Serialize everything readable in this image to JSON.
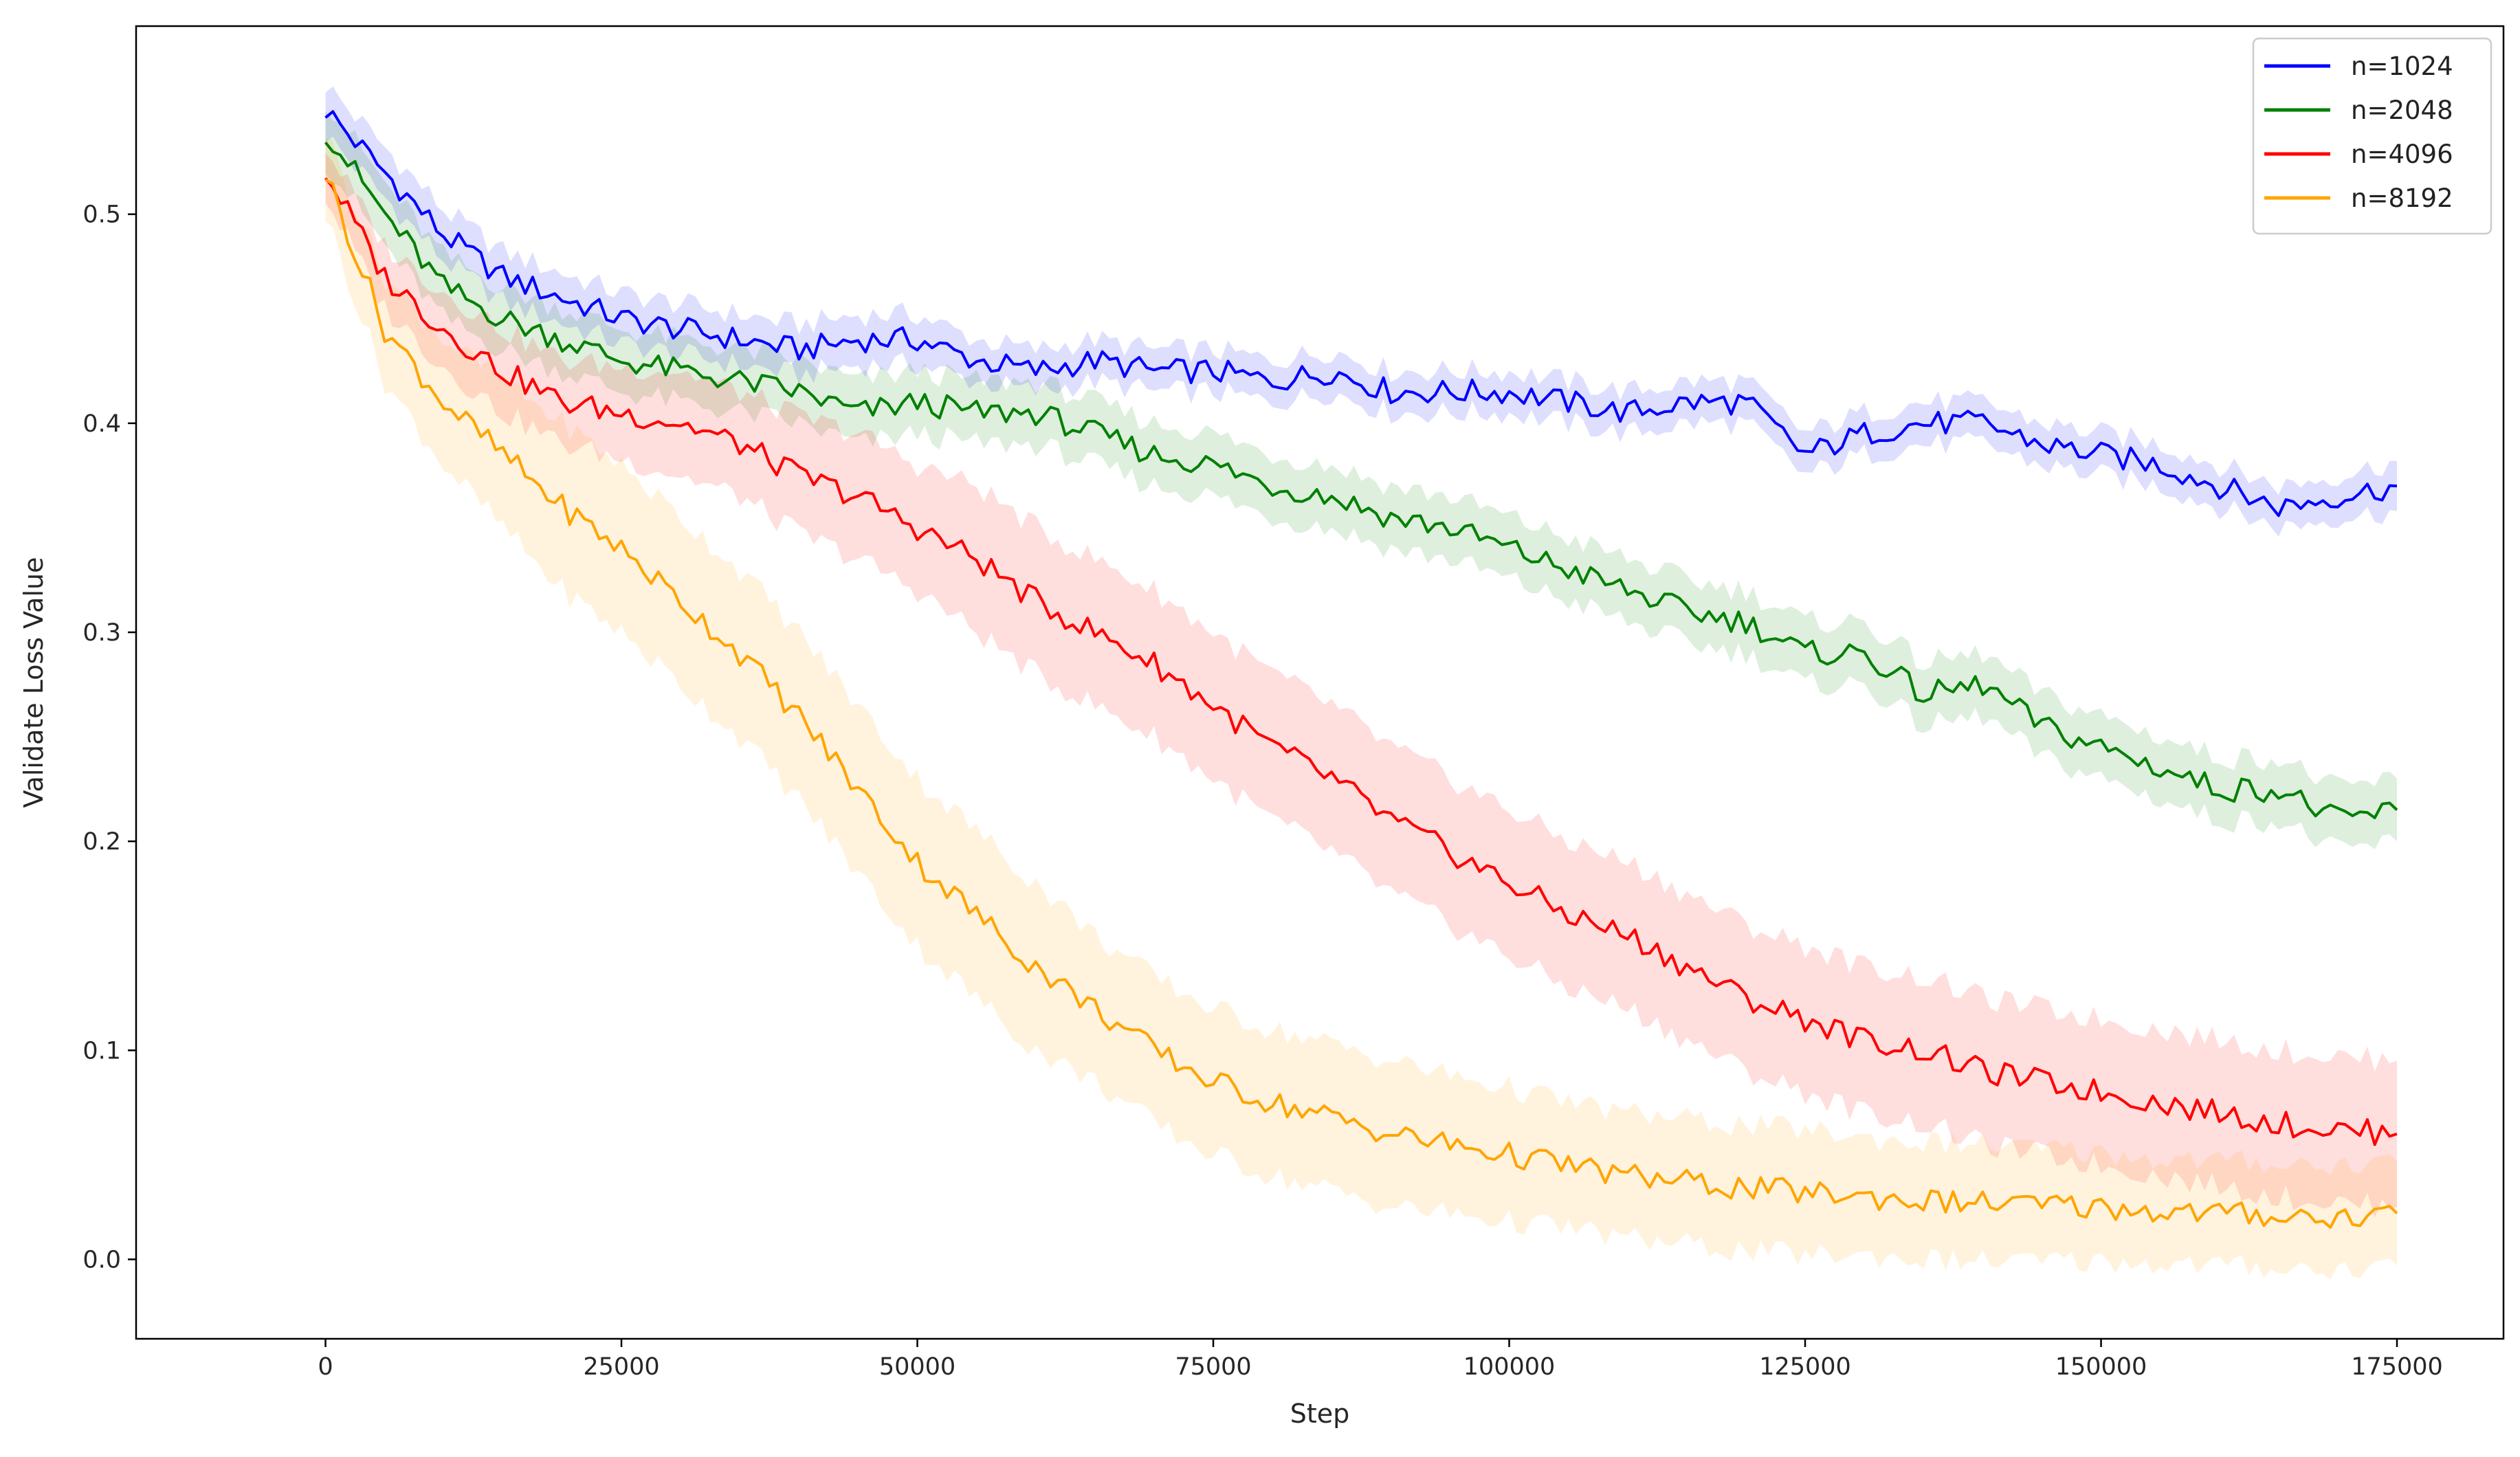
{
  "chart_data": {
    "type": "line",
    "title": "",
    "xlabel": "Step",
    "ylabel": "Validate Loss Value",
    "xlim": [
      -16000,
      184000
    ],
    "ylim": [
      -0.038,
      0.59
    ],
    "xticks": [
      0,
      25000,
      50000,
      75000,
      100000,
      125000,
      150000,
      175000
    ],
    "xtick_labels": [
      "0",
      "25000",
      "50000",
      "75000",
      "100000",
      "125000",
      "150000",
      "175000"
    ],
    "yticks": [
      0.0,
      0.1,
      0.2,
      0.3,
      0.4,
      0.5
    ],
    "ytick_labels": [
      "0.0",
      "0.1",
      "0.2",
      "0.3",
      "0.4",
      "0.5"
    ],
    "grid": false,
    "legend_position": "top-right",
    "band": "shaded region around each series",
    "series": [
      {
        "name": "n=1024",
        "color": "#0000ff",
        "x": [
          0,
          5000,
          10000,
          15000,
          20000,
          25000,
          30000,
          35000,
          40000,
          45000,
          50000,
          55000,
          60000,
          65000,
          70000,
          75000,
          80000,
          85000,
          90000,
          95000,
          100000,
          105000,
          110000,
          115000,
          120000,
          125000,
          130000,
          135000,
          140000,
          145000,
          150000,
          155000,
          160000,
          165000,
          170000,
          175000
        ],
        "values": [
          0.55,
          0.52,
          0.49,
          0.47,
          0.46,
          0.45,
          0.445,
          0.44,
          0.435,
          0.44,
          0.44,
          0.43,
          0.425,
          0.43,
          0.425,
          0.425,
          0.42,
          0.425,
          0.415,
          0.415,
          0.415,
          0.41,
          0.405,
          0.41,
          0.41,
          0.385,
          0.395,
          0.4,
          0.4,
          0.39,
          0.385,
          0.38,
          0.37,
          0.36,
          0.365,
          0.37
        ],
        "band": [
          0.012,
          0.012,
          0.012,
          0.012,
          0.012,
          0.012,
          0.012,
          0.012,
          0.012,
          0.012,
          0.012,
          0.01,
          0.01,
          0.01,
          0.01,
          0.01,
          0.01,
          0.01,
          0.01,
          0.01,
          0.01,
          0.01,
          0.01,
          0.01,
          0.01,
          0.01,
          0.01,
          0.01,
          0.01,
          0.01,
          0.01,
          0.01,
          0.01,
          0.01,
          0.01,
          0.012
        ]
      },
      {
        "name": "n=2048",
        "color": "#008000",
        "x": [
          0,
          5000,
          10000,
          15000,
          20000,
          25000,
          30000,
          35000,
          40000,
          45000,
          50000,
          55000,
          60000,
          65000,
          70000,
          75000,
          80000,
          85000,
          90000,
          95000,
          100000,
          105000,
          110000,
          115000,
          120000,
          125000,
          130000,
          135000,
          140000,
          145000,
          150000,
          155000,
          160000,
          165000,
          170000,
          175000
        ],
        "values": [
          0.54,
          0.5,
          0.465,
          0.45,
          0.44,
          0.43,
          0.425,
          0.42,
          0.415,
          0.405,
          0.41,
          0.405,
          0.405,
          0.395,
          0.385,
          0.38,
          0.37,
          0.365,
          0.355,
          0.35,
          0.34,
          0.33,
          0.32,
          0.31,
          0.305,
          0.29,
          0.29,
          0.27,
          0.275,
          0.255,
          0.245,
          0.235,
          0.225,
          0.225,
          0.21,
          0.215
        ],
        "band": [
          0.015,
          0.015,
          0.015,
          0.015,
          0.015,
          0.015,
          0.015,
          0.015,
          0.015,
          0.015,
          0.015,
          0.015,
          0.015,
          0.015,
          0.015,
          0.015,
          0.015,
          0.015,
          0.015,
          0.015,
          0.015,
          0.015,
          0.015,
          0.015,
          0.015,
          0.015,
          0.015,
          0.015,
          0.015,
          0.015,
          0.015,
          0.015,
          0.015,
          0.015,
          0.015,
          0.015
        ]
      },
      {
        "name": "n=4096",
        "color": "#ff0000",
        "x": [
          0,
          5000,
          10000,
          15000,
          20000,
          25000,
          30000,
          35000,
          40000,
          45000,
          50000,
          55000,
          60000,
          65000,
          70000,
          75000,
          80000,
          85000,
          90000,
          95000,
          100000,
          105000,
          110000,
          115000,
          120000,
          125000,
          130000,
          135000,
          140000,
          145000,
          150000,
          155000,
          160000,
          165000,
          170000,
          175000
        ],
        "values": [
          0.52,
          0.47,
          0.445,
          0.425,
          0.41,
          0.405,
          0.4,
          0.39,
          0.375,
          0.365,
          0.35,
          0.335,
          0.315,
          0.3,
          0.285,
          0.265,
          0.245,
          0.23,
          0.21,
          0.195,
          0.18,
          0.165,
          0.155,
          0.14,
          0.125,
          0.115,
          0.105,
          0.1,
          0.09,
          0.085,
          0.08,
          0.075,
          0.07,
          0.065,
          0.062,
          0.06
        ],
        "band": [
          0.012,
          0.015,
          0.018,
          0.02,
          0.02,
          0.022,
          0.025,
          0.025,
          0.028,
          0.03,
          0.03,
          0.035,
          0.035,
          0.035,
          0.035,
          0.035,
          0.035,
          0.035,
          0.035,
          0.035,
          0.035,
          0.035,
          0.035,
          0.035,
          0.035,
          0.035,
          0.035,
          0.035,
          0.035,
          0.035,
          0.035,
          0.035,
          0.035,
          0.035,
          0.035,
          0.035
        ]
      },
      {
        "name": "n=8192",
        "color": "#ffa500",
        "x": [
          0,
          5000,
          10000,
          15000,
          20000,
          25000,
          30000,
          35000,
          40000,
          45000,
          50000,
          55000,
          60000,
          65000,
          70000,
          75000,
          80000,
          85000,
          90000,
          95000,
          100000,
          105000,
          110000,
          115000,
          120000,
          125000,
          130000,
          135000,
          140000,
          145000,
          150000,
          155000,
          160000,
          165000,
          170000,
          175000
        ],
        "values": [
          0.52,
          0.445,
          0.41,
          0.385,
          0.36,
          0.34,
          0.315,
          0.29,
          0.26,
          0.225,
          0.19,
          0.165,
          0.14,
          0.12,
          0.1,
          0.085,
          0.075,
          0.068,
          0.06,
          0.055,
          0.05,
          0.045,
          0.04,
          0.037,
          0.034,
          0.032,
          0.03,
          0.028,
          0.027,
          0.026,
          0.025,
          0.023,
          0.022,
          0.021,
          0.02,
          0.022
        ],
        "band": [
          0.02,
          0.025,
          0.03,
          0.035,
          0.04,
          0.04,
          0.04,
          0.04,
          0.04,
          0.04,
          0.04,
          0.04,
          0.04,
          0.035,
          0.035,
          0.035,
          0.035,
          0.035,
          0.035,
          0.033,
          0.032,
          0.03,
          0.03,
          0.03,
          0.03,
          0.03,
          0.028,
          0.028,
          0.028,
          0.027,
          0.026,
          0.025,
          0.025,
          0.025,
          0.025,
          0.025
        ]
      }
    ]
  }
}
